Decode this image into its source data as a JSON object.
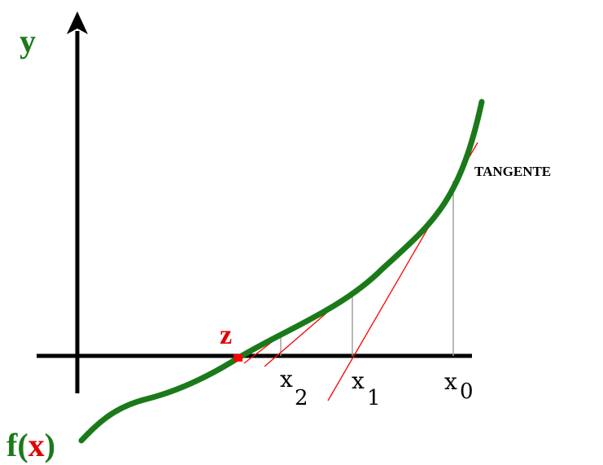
{
  "labels": {
    "y_axis": "y",
    "function_f": "f",
    "function_paren_open": "(",
    "function_var": "x",
    "function_paren_close": ")",
    "root": "z",
    "tangent": "TANGENTE",
    "x0_base": "x",
    "x0_sub": "0",
    "x1_base": "x",
    "x1_sub": "1",
    "x2_base": "x",
    "x2_sub": "2"
  },
  "colors": {
    "axis": "#000000",
    "curve": "#1a7a1a",
    "tangent": "#ff0000",
    "root_marker": "#ff0000",
    "root_label": "#e00000",
    "drop_line": "#a0a0a0",
    "function_label": "#1a7a1a",
    "function_var": "#e00000"
  }
}
